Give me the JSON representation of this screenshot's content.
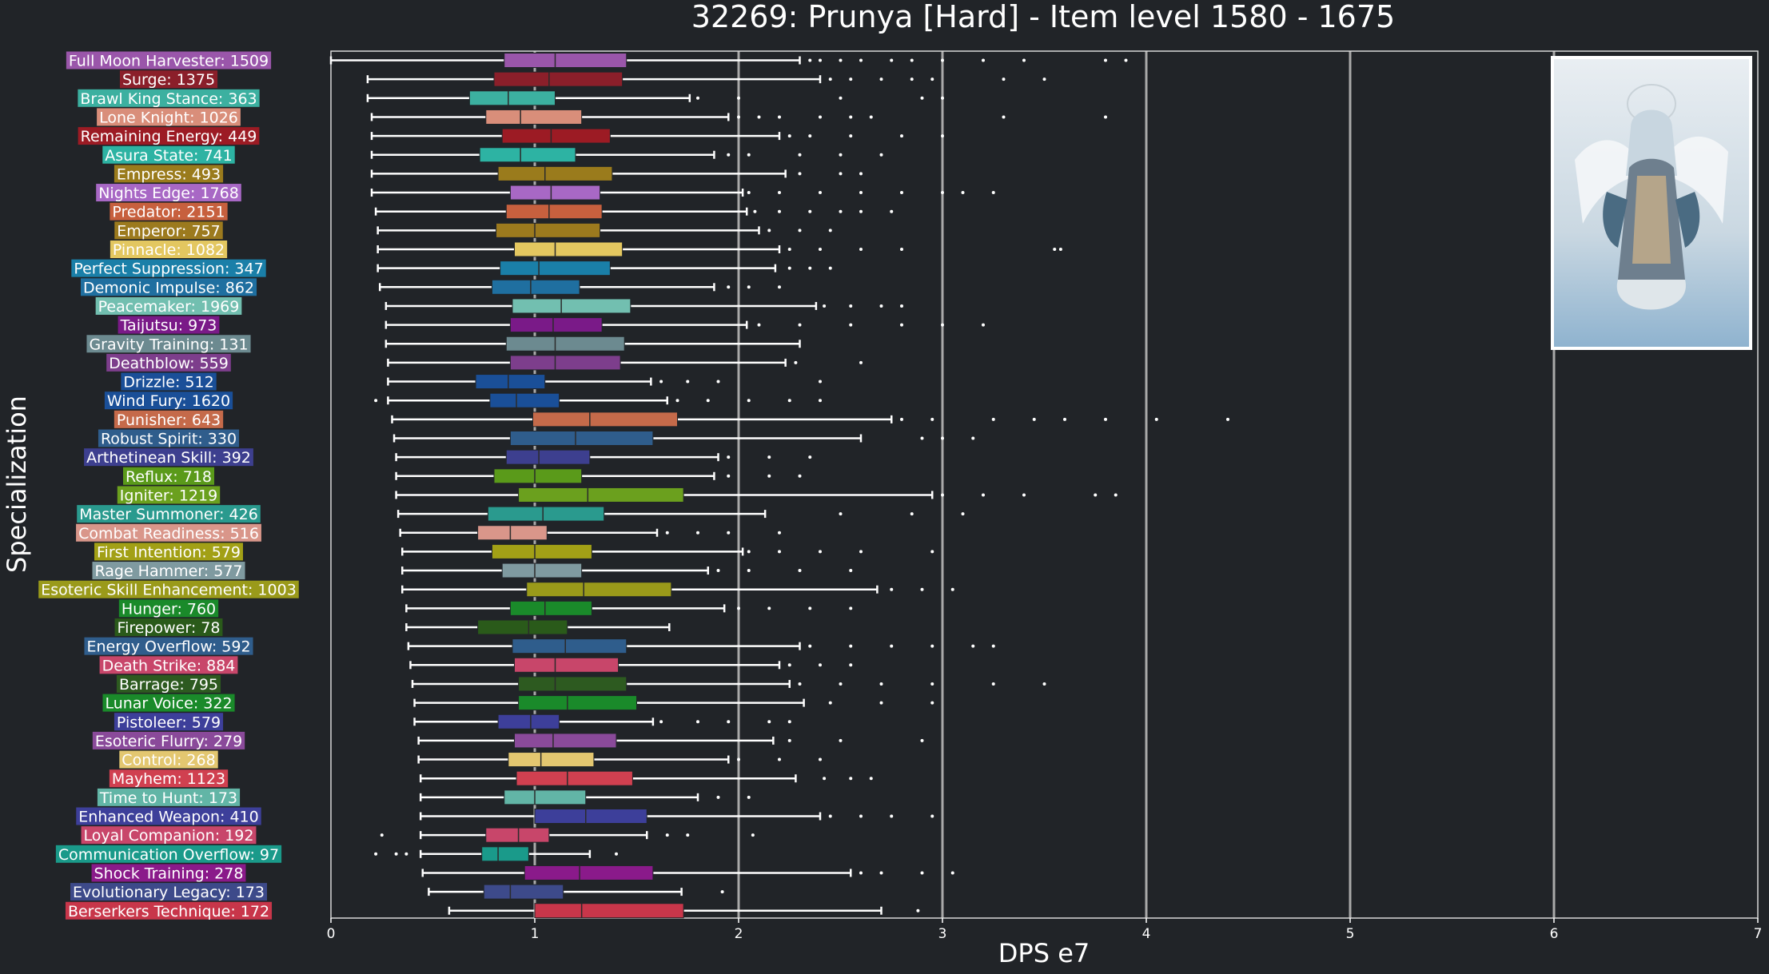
{
  "chart_data": {
    "type": "boxplot",
    "orientation": "horizontal",
    "title": "32269: Prunya [Hard] - Item level 1580 - 1675",
    "xlabel": "DPS e7",
    "ylabel": "Specialization",
    "x_offset_label": "1e7",
    "xlim": [
      0,
      7
    ],
    "x_ticks": [
      0,
      1,
      2,
      3,
      4,
      5,
      6,
      7
    ],
    "grid_x": [
      1,
      2,
      3,
      4,
      5,
      6
    ],
    "legend": "none",
    "image": "character portrait (winged figure) in top-right",
    "series": [
      {
        "label": "Full Moon Harvester: 1509",
        "color": "#9a56aa",
        "whisker_low": 0.0,
        "q1": 0.85,
        "median": 1.1,
        "q3": 1.45,
        "whisker_high": 2.3,
        "outliers": [
          2.35,
          2.4,
          2.5,
          2.6,
          2.75,
          2.85,
          3.0,
          3.2,
          3.4,
          3.8,
          3.9
        ]
      },
      {
        "label": "Surge: 1375",
        "color": "#8b1f2a",
        "whisker_low": 0.18,
        "q1": 0.8,
        "median": 1.07,
        "q3": 1.43,
        "whisker_high": 2.4,
        "outliers": [
          2.45,
          2.55,
          2.7,
          2.85,
          2.95,
          3.3,
          3.5
        ]
      },
      {
        "label": "Brawl King Stance: 363",
        "color": "#3cb0a0",
        "whisker_low": 0.18,
        "q1": 0.68,
        "median": 0.87,
        "q3": 1.1,
        "whisker_high": 1.76,
        "outliers": [
          1.8,
          2.0,
          2.5,
          2.9,
          3.0
        ]
      },
      {
        "label": "Lone Knight: 1026",
        "color": "#d98e7a",
        "whisker_low": 0.2,
        "q1": 0.76,
        "median": 0.93,
        "q3": 1.23,
        "whisker_high": 1.95,
        "outliers": [
          2.0,
          2.1,
          2.2,
          2.4,
          2.55,
          2.65,
          3.3,
          3.8
        ]
      },
      {
        "label": "Remaining Energy: 449",
        "color": "#9c1b24",
        "whisker_low": 0.2,
        "q1": 0.84,
        "median": 1.08,
        "q3": 1.37,
        "whisker_high": 2.2,
        "outliers": [
          2.25,
          2.35,
          2.55,
          2.8,
          3.0
        ]
      },
      {
        "label": "Asura State: 741",
        "color": "#2db3a3",
        "whisker_low": 0.2,
        "q1": 0.73,
        "median": 0.93,
        "q3": 1.2,
        "whisker_high": 1.88,
        "outliers": [
          1.95,
          2.05,
          2.3,
          2.5,
          2.7
        ]
      },
      {
        "label": "Empress: 493",
        "color": "#9a7b1c",
        "whisker_low": 0.2,
        "q1": 0.82,
        "median": 1.05,
        "q3": 1.38,
        "whisker_high": 2.23,
        "outliers": [
          2.3,
          2.5,
          2.6
        ]
      },
      {
        "label": "Nights Edge: 1768",
        "color": "#a868c5",
        "whisker_low": 0.2,
        "q1": 0.88,
        "median": 1.08,
        "q3": 1.32,
        "whisker_high": 2.02,
        "outliers": [
          2.05,
          2.2,
          2.4,
          2.6,
          2.8,
          3.0,
          3.1,
          3.25
        ]
      },
      {
        "label": "Predator: 2151",
        "color": "#c7603e",
        "whisker_low": 0.22,
        "q1": 0.86,
        "median": 1.07,
        "q3": 1.33,
        "whisker_high": 2.04,
        "outliers": [
          2.08,
          2.2,
          2.35,
          2.5,
          2.6,
          2.75
        ]
      },
      {
        "label": "Emperor: 757",
        "color": "#9c7a1e",
        "whisker_low": 0.23,
        "q1": 0.81,
        "median": 1.0,
        "q3": 1.32,
        "whisker_high": 2.1,
        "outliers": [
          2.15,
          2.3,
          2.45
        ]
      },
      {
        "label": "Pinnacle: 1082",
        "color": "#e3c760",
        "whisker_low": 0.23,
        "q1": 0.9,
        "median": 1.1,
        "q3": 1.43,
        "whisker_high": 2.2,
        "outliers": [
          2.25,
          2.4,
          2.6,
          2.8,
          3.55,
          3.58
        ]
      },
      {
        "label": "Perfect Suppression: 347",
        "color": "#1a7fa8",
        "whisker_low": 0.23,
        "q1": 0.83,
        "median": 1.02,
        "q3": 1.37,
        "whisker_high": 2.18,
        "outliers": [
          2.25,
          2.35,
          2.45
        ]
      },
      {
        "label": "Demonic Impulse: 862",
        "color": "#1f6fa0",
        "whisker_low": 0.24,
        "q1": 0.79,
        "median": 0.98,
        "q3": 1.22,
        "whisker_high": 1.88,
        "outliers": [
          1.95,
          2.05,
          2.2
        ]
      },
      {
        "label": "Peacemaker: 1969",
        "color": "#72bfb0",
        "whisker_low": 0.27,
        "q1": 0.89,
        "median": 1.13,
        "q3": 1.47,
        "whisker_high": 2.38,
        "outliers": [
          2.42,
          2.55,
          2.7,
          2.8
        ]
      },
      {
        "label": "Taijutsu: 973",
        "color": "#7a1a88",
        "whisker_low": 0.27,
        "q1": 0.88,
        "median": 1.09,
        "q3": 1.33,
        "whisker_high": 2.04,
        "outliers": [
          2.1,
          2.3,
          2.55,
          2.8,
          3.0,
          3.2
        ]
      },
      {
        "label": "Gravity Training: 131",
        "color": "#6c8a90",
        "whisker_low": 0.27,
        "q1": 0.86,
        "median": 1.1,
        "q3": 1.44,
        "whisker_high": 2.3,
        "outliers": []
      },
      {
        "label": "Deathblow: 559",
        "color": "#7d3e8c",
        "whisker_low": 0.28,
        "q1": 0.88,
        "median": 1.1,
        "q3": 1.42,
        "whisker_high": 2.23,
        "outliers": [
          2.28,
          2.6
        ]
      },
      {
        "label": "Drizzle: 512",
        "color": "#1a4f98",
        "whisker_low": 0.28,
        "q1": 0.71,
        "median": 0.87,
        "q3": 1.05,
        "whisker_high": 1.57,
        "outliers": [
          1.62,
          1.75,
          1.9,
          2.4
        ]
      },
      {
        "label": "Wind Fury: 1620",
        "color": "#1a4f98",
        "whisker_low": 0.28,
        "q1": 0.78,
        "median": 0.91,
        "q3": 1.12,
        "whisker_high": 1.65,
        "outliers": [
          0.22,
          1.7,
          1.85,
          2.05,
          2.25,
          2.4
        ]
      },
      {
        "label": "Punisher: 643",
        "color": "#c56a4a",
        "whisker_low": 0.3,
        "q1": 0.99,
        "median": 1.27,
        "q3": 1.7,
        "whisker_high": 2.75,
        "outliers": [
          2.8,
          2.95,
          3.25,
          3.45,
          3.6,
          3.8,
          4.05,
          4.4
        ]
      },
      {
        "label": "Robust Spirit: 330",
        "color": "#2f5d8c",
        "whisker_low": 0.31,
        "q1": 0.88,
        "median": 1.2,
        "q3": 1.58,
        "whisker_high": 2.6,
        "outliers": [
          2.9,
          3.0,
          3.15
        ]
      },
      {
        "label": "Arthetinean Skill: 392",
        "color": "#3d3f8f",
        "whisker_low": 0.32,
        "q1": 0.86,
        "median": 1.02,
        "q3": 1.27,
        "whisker_high": 1.9,
        "outliers": [
          1.95,
          2.15,
          2.35
        ]
      },
      {
        "label": "Reflux: 718",
        "color": "#5a9a1a",
        "whisker_low": 0.32,
        "q1": 0.8,
        "median": 1.0,
        "q3": 1.23,
        "whisker_high": 1.88,
        "outliers": [
          1.95,
          2.15,
          2.3
        ]
      },
      {
        "label": "Igniter: 1219",
        "color": "#6ba01e",
        "whisker_low": 0.32,
        "q1": 0.92,
        "median": 1.26,
        "q3": 1.73,
        "whisker_high": 2.95,
        "outliers": [
          3.0,
          3.2,
          3.4,
          3.75,
          3.85
        ]
      },
      {
        "label": "Master Summoner: 426",
        "color": "#2a9a8e",
        "whisker_low": 0.33,
        "q1": 0.77,
        "median": 1.04,
        "q3": 1.34,
        "whisker_high": 2.13,
        "outliers": [
          2.5,
          2.85,
          3.1
        ]
      },
      {
        "label": "Combat Readiness: 516",
        "color": "#d9968a",
        "whisker_low": 0.34,
        "q1": 0.72,
        "median": 0.88,
        "q3": 1.06,
        "whisker_high": 1.6,
        "outliers": [
          1.65,
          1.8,
          1.95,
          2.2
        ]
      },
      {
        "label": "First Intention: 579",
        "color": "#a2a016",
        "whisker_low": 0.35,
        "q1": 0.79,
        "median": 1.0,
        "q3": 1.28,
        "whisker_high": 2.02,
        "outliers": [
          2.05,
          2.2,
          2.4,
          2.6,
          2.95
        ]
      },
      {
        "label": "Rage Hammer: 577",
        "color": "#7f9aa0",
        "whisker_low": 0.35,
        "q1": 0.84,
        "median": 1.0,
        "q3": 1.23,
        "whisker_high": 1.85,
        "outliers": [
          1.9,
          2.05,
          2.3,
          2.55
        ]
      },
      {
        "label": "Esoteric Skill Enhancement: 1003",
        "color": "#9a9a1a",
        "whisker_low": 0.35,
        "q1": 0.96,
        "median": 1.24,
        "q3": 1.67,
        "whisker_high": 2.68,
        "outliers": [
          2.75,
          2.9,
          3.05
        ]
      },
      {
        "label": "Hunger: 760",
        "color": "#1a8a2a",
        "whisker_low": 0.37,
        "q1": 0.88,
        "median": 1.05,
        "q3": 1.28,
        "whisker_high": 1.93,
        "outliers": [
          2.0,
          2.15,
          2.35,
          2.55
        ]
      },
      {
        "label": "Firepower: 78",
        "color": "#2a5a1a",
        "whisker_low": 0.37,
        "q1": 0.72,
        "median": 0.97,
        "q3": 1.16,
        "whisker_high": 1.66,
        "outliers": []
      },
      {
        "label": "Energy Overflow: 592",
        "color": "#2f5d8c",
        "whisker_low": 0.38,
        "q1": 0.89,
        "median": 1.15,
        "q3": 1.45,
        "whisker_high": 2.3,
        "outliers": [
          2.35,
          2.55,
          2.75,
          2.95,
          3.15,
          3.25
        ]
      },
      {
        "label": "Death Strike: 884",
        "color": "#c8466a",
        "whisker_low": 0.39,
        "q1": 0.9,
        "median": 1.1,
        "q3": 1.41,
        "whisker_high": 2.2,
        "outliers": [
          2.25,
          2.4,
          2.55
        ]
      },
      {
        "label": "Barrage: 795",
        "color": "#2d5a20",
        "whisker_low": 0.4,
        "q1": 0.92,
        "median": 1.1,
        "q3": 1.45,
        "whisker_high": 2.25,
        "outliers": [
          2.3,
          2.5,
          2.7,
          2.95,
          3.25,
          3.5
        ]
      },
      {
        "label": "Lunar Voice: 322",
        "color": "#1a8a2a",
        "whisker_low": 0.41,
        "q1": 0.92,
        "median": 1.16,
        "q3": 1.5,
        "whisker_high": 2.32,
        "outliers": [
          2.45,
          2.7,
          2.95
        ]
      },
      {
        "label": "Pistoleer: 579",
        "color": "#3d3f9a",
        "whisker_low": 0.41,
        "q1": 0.82,
        "median": 0.98,
        "q3": 1.12,
        "whisker_high": 1.58,
        "outliers": [
          1.62,
          1.8,
          1.95,
          2.15,
          2.25
        ]
      },
      {
        "label": "Esoteric Flurry: 279",
        "color": "#8a4a9a",
        "whisker_low": 0.43,
        "q1": 0.9,
        "median": 1.09,
        "q3": 1.4,
        "whisker_high": 2.17,
        "outliers": [
          2.25,
          2.5,
          2.9
        ]
      },
      {
        "label": "Control: 268",
        "color": "#e3c770",
        "whisker_low": 0.43,
        "q1": 0.87,
        "median": 1.03,
        "q3": 1.29,
        "whisker_high": 1.95,
        "outliers": [
          2.0,
          2.2,
          2.4
        ]
      },
      {
        "label": "Mayhem: 1123",
        "color": "#d04050",
        "whisker_low": 0.44,
        "q1": 0.91,
        "median": 1.16,
        "q3": 1.48,
        "whisker_high": 2.28,
        "outliers": [
          2.42,
          2.55,
          2.65
        ]
      },
      {
        "label": "Time to Hunt: 173",
        "color": "#62b5a6",
        "whisker_low": 0.44,
        "q1": 0.85,
        "median": 1.0,
        "q3": 1.25,
        "whisker_high": 1.8,
        "outliers": [
          1.9,
          2.05
        ]
      },
      {
        "label": "Enhanced Weapon: 410",
        "color": "#3d3f9a",
        "whisker_low": 0.44,
        "q1": 1.0,
        "median": 1.25,
        "q3": 1.55,
        "whisker_high": 2.4,
        "outliers": [
          2.45,
          2.6,
          2.75,
          2.95
        ]
      },
      {
        "label": "Loyal Companion: 192",
        "color": "#c8466a",
        "whisker_low": 0.44,
        "q1": 0.76,
        "median": 0.92,
        "q3": 1.07,
        "whisker_high": 1.55,
        "outliers": [
          0.25,
          1.65,
          1.75,
          2.07
        ]
      },
      {
        "label": "Communication Overflow: 97",
        "color": "#1a9a8a",
        "whisker_low": 0.44,
        "q1": 0.74,
        "median": 0.82,
        "q3": 0.97,
        "whisker_high": 1.27,
        "outliers": [
          0.22,
          0.32,
          0.37,
          1.4
        ]
      },
      {
        "label": "Shock Training: 278",
        "color": "#8a1a8a",
        "whisker_low": 0.45,
        "q1": 0.95,
        "median": 1.22,
        "q3": 1.58,
        "whisker_high": 2.55,
        "outliers": [
          2.6,
          2.7,
          2.9,
          3.05
        ]
      },
      {
        "label": "Evolutionary Legacy: 173",
        "color": "#3d4a8a",
        "whisker_low": 0.48,
        "q1": 0.75,
        "median": 0.88,
        "q3": 1.14,
        "whisker_high": 1.72,
        "outliers": [
          1.92
        ]
      },
      {
        "label": "Berserkers Technique: 172",
        "color": "#c8364a",
        "whisker_low": 0.58,
        "q1": 1.0,
        "median": 1.23,
        "q3": 1.73,
        "whisker_high": 2.7,
        "outliers": [
          2.88
        ]
      }
    ]
  }
}
